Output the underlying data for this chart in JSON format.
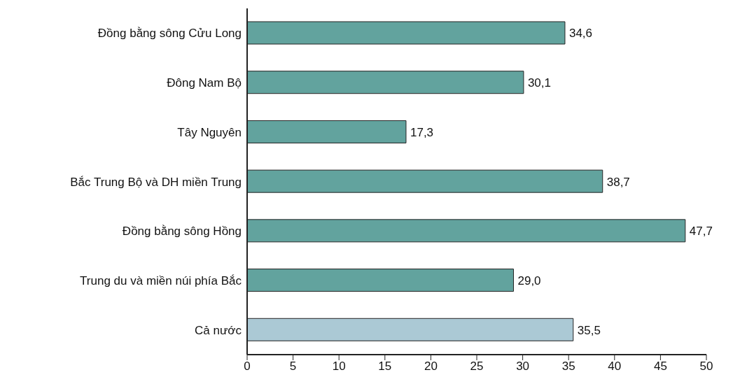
{
  "chart_data": {
    "type": "bar",
    "orientation": "horizontal",
    "categories": [
      "Đồng bằng sông Cửu Long",
      "Đông Nam Bộ",
      "Tây Nguyên",
      "Bắc Trung Bộ và DH miền Trung",
      "Đồng bằng sông Hồng",
      "Trung du và miền núi phía Bắc",
      "Cả nước"
    ],
    "values": [
      34.6,
      30.1,
      17.3,
      38.7,
      47.7,
      29.0,
      35.5
    ],
    "value_labels": [
      "34,6",
      "30,1",
      "17,3",
      "38,7",
      "47,7",
      "29,0",
      "35,5"
    ],
    "colors": [
      "#62a39e",
      "#62a39e",
      "#62a39e",
      "#62a39e",
      "#62a39e",
      "#62a39e",
      "#abc9d5"
    ],
    "xlim": [
      0,
      50
    ],
    "xticks": [
      0,
      5,
      10,
      15,
      20,
      25,
      30,
      35,
      40,
      45,
      50
    ],
    "grid": false,
    "legend": false
  }
}
